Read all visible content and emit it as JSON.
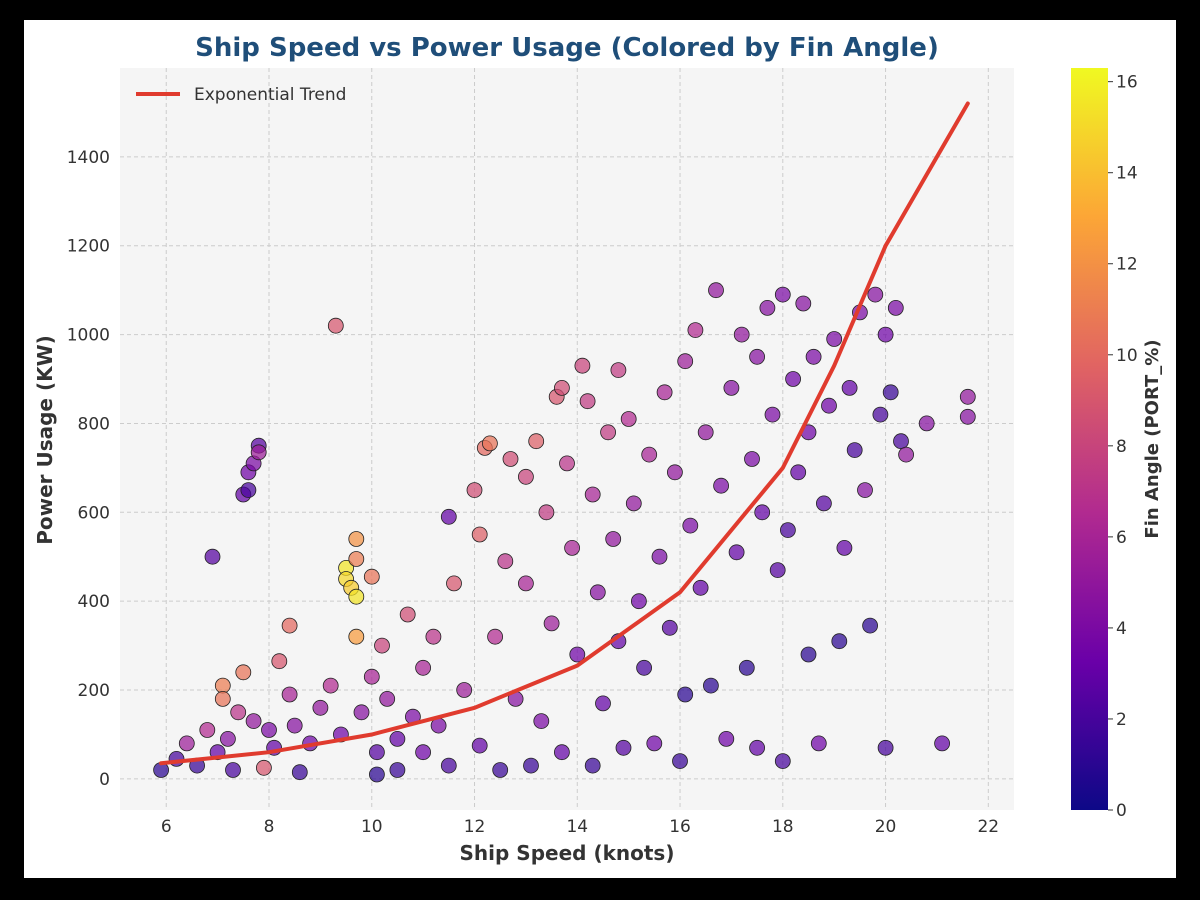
{
  "chart_data": {
    "type": "scatter",
    "title": "Ship Speed vs Power Usage (Colored by Fin Angle)",
    "xlabel": "Ship Speed (knots)",
    "ylabel": "Power Usage (KW)",
    "xlim": [
      5.1,
      22.5
    ],
    "ylim": [
      -70,
      1600
    ],
    "xticks": [
      6,
      8,
      10,
      12,
      14,
      16,
      18,
      20,
      22
    ],
    "yticks": [
      0,
      200,
      400,
      600,
      800,
      1000,
      1200,
      1400
    ],
    "grid": true,
    "legend": {
      "position": "top-left",
      "entries": [
        "Exponential Trend"
      ]
    },
    "colorbar": {
      "label": "Fin Angle (PORT_%)",
      "range": [
        0,
        16.3
      ],
      "ticks": [
        0,
        2,
        4,
        6,
        8,
        10,
        12,
        14,
        16
      ],
      "colormap": [
        "#0d0887",
        "#6a00a8",
        "#b12a90",
        "#e16462",
        "#fca636",
        "#f0f921"
      ]
    },
    "trend": {
      "name": "Exponential Trend",
      "color": "#e03b2e",
      "x": [
        5.9,
        8,
        10,
        12,
        14,
        16,
        18,
        19,
        20,
        21,
        21.6
      ],
      "y": [
        35,
        60,
        100,
        160,
        255,
        420,
        700,
        930,
        1200,
        1400,
        1520
      ]
    },
    "points": [
      [
        5.9,
        20,
        1.0
      ],
      [
        6.2,
        45,
        2.0
      ],
      [
        6.4,
        80,
        5.5
      ],
      [
        6.6,
        30,
        1.5
      ],
      [
        6.8,
        110,
        6.5
      ],
      [
        6.9,
        500,
        2.5
      ],
      [
        7.0,
        60,
        3.0
      ],
      [
        7.1,
        210,
        11.0
      ],
      [
        7.1,
        180,
        10.5
      ],
      [
        7.2,
        90,
        4.5
      ],
      [
        7.3,
        20,
        2.0
      ],
      [
        7.4,
        150,
        7.0
      ],
      [
        7.5,
        240,
        10.5
      ],
      [
        7.5,
        640,
        3.0
      ],
      [
        7.6,
        650,
        2.0
      ],
      [
        7.6,
        690,
        3.5
      ],
      [
        7.7,
        710,
        4.0
      ],
      [
        7.7,
        130,
        5.0
      ],
      [
        7.8,
        750,
        2.5
      ],
      [
        7.8,
        735,
        5.5
      ],
      [
        7.9,
        25,
        9.0
      ],
      [
        8.0,
        110,
        4.0
      ],
      [
        8.1,
        70,
        3.0
      ],
      [
        8.2,
        265,
        9.0
      ],
      [
        8.4,
        345,
        10.0
      ],
      [
        8.4,
        190,
        6.0
      ],
      [
        8.5,
        120,
        4.5
      ],
      [
        8.6,
        15,
        1.5
      ],
      [
        8.8,
        80,
        3.5
      ],
      [
        9.0,
        160,
        5.0
      ],
      [
        9.2,
        210,
        6.5
      ],
      [
        9.3,
        1020,
        9.0
      ],
      [
        9.4,
        100,
        3.5
      ],
      [
        9.5,
        475,
        15.5
      ],
      [
        9.5,
        450,
        15.0
      ],
      [
        9.6,
        430,
        14.5
      ],
      [
        9.7,
        410,
        15.5
      ],
      [
        9.7,
        320,
        12.5
      ],
      [
        9.7,
        495,
        11.0
      ],
      [
        9.7,
        540,
        12.0
      ],
      [
        9.8,
        150,
        4.5
      ],
      [
        10.0,
        455,
        10.5
      ],
      [
        10.0,
        230,
        6.0
      ],
      [
        10.1,
        60,
        2.5
      ],
      [
        10.1,
        10,
        1.0
      ],
      [
        10.2,
        300,
        8.0
      ],
      [
        10.3,
        180,
        5.0
      ],
      [
        10.5,
        90,
        3.0
      ],
      [
        10.5,
        20,
        1.5
      ],
      [
        10.7,
        370,
        8.5
      ],
      [
        10.8,
        140,
        4.0
      ],
      [
        11.0,
        250,
        6.0
      ],
      [
        11.0,
        60,
        3.5
      ],
      [
        11.2,
        320,
        7.0
      ],
      [
        11.3,
        120,
        4.0
      ],
      [
        11.5,
        30,
        2.0
      ],
      [
        11.5,
        590,
        3.0
      ],
      [
        11.6,
        440,
        9.0
      ],
      [
        11.8,
        200,
        5.5
      ],
      [
        12.0,
        650,
        8.5
      ],
      [
        12.1,
        550,
        9.5
      ],
      [
        12.1,
        75,
        3.0
      ],
      [
        12.2,
        745,
        10.0
      ],
      [
        12.3,
        755,
        10.5
      ],
      [
        12.4,
        320,
        6.5
      ],
      [
        12.5,
        20,
        1.5
      ],
      [
        12.6,
        490,
        7.0
      ],
      [
        12.7,
        720,
        8.5
      ],
      [
        12.8,
        180,
        4.5
      ],
      [
        13.0,
        680,
        8.0
      ],
      [
        13.0,
        440,
        6.0
      ],
      [
        13.1,
        30,
        1.5
      ],
      [
        13.2,
        760,
        9.5
      ],
      [
        13.3,
        130,
        4.0
      ],
      [
        13.4,
        600,
        7.5
      ],
      [
        13.5,
        350,
        5.5
      ],
      [
        13.6,
        860,
        9.0
      ],
      [
        13.7,
        880,
        8.5
      ],
      [
        13.7,
        60,
        3.0
      ],
      [
        13.8,
        710,
        7.0
      ],
      [
        13.9,
        520,
        6.0
      ],
      [
        14.0,
        280,
        3.5
      ],
      [
        14.1,
        930,
        8.0
      ],
      [
        14.2,
        850,
        7.5
      ],
      [
        14.3,
        640,
        6.0
      ],
      [
        14.3,
        30,
        1.5
      ],
      [
        14.4,
        420,
        4.5
      ],
      [
        14.5,
        170,
        3.0
      ],
      [
        14.6,
        780,
        7.5
      ],
      [
        14.7,
        540,
        5.0
      ],
      [
        14.8,
        310,
        3.0
      ],
      [
        14.8,
        920,
        7.5
      ],
      [
        14.9,
        70,
        2.5
      ],
      [
        15.0,
        810,
        6.5
      ],
      [
        15.1,
        620,
        5.0
      ],
      [
        15.2,
        400,
        3.5
      ],
      [
        15.3,
        250,
        2.0
      ],
      [
        15.4,
        730,
        6.0
      ],
      [
        15.5,
        80,
        3.5
      ],
      [
        15.6,
        500,
        4.0
      ],
      [
        15.7,
        870,
        6.0
      ],
      [
        15.8,
        340,
        2.5
      ],
      [
        15.9,
        690,
        5.0
      ],
      [
        16.0,
        40,
        1.5
      ],
      [
        16.1,
        940,
        5.5
      ],
      [
        16.1,
        190,
        1.0
      ],
      [
        16.2,
        570,
        4.0
      ],
      [
        16.3,
        1010,
        6.5
      ],
      [
        16.4,
        430,
        3.0
      ],
      [
        16.5,
        780,
        5.0
      ],
      [
        16.6,
        210,
        1.0
      ],
      [
        16.7,
        1100,
        5.0
      ],
      [
        16.8,
        660,
        4.0
      ],
      [
        16.9,
        90,
        3.5
      ],
      [
        17.0,
        880,
        4.5
      ],
      [
        17.1,
        510,
        3.0
      ],
      [
        17.2,
        1000,
        5.0
      ],
      [
        17.3,
        250,
        1.0
      ],
      [
        17.4,
        720,
        4.0
      ],
      [
        17.5,
        950,
        4.5
      ],
      [
        17.5,
        70,
        3.0
      ],
      [
        17.6,
        600,
        3.0
      ],
      [
        17.7,
        1060,
        4.5
      ],
      [
        17.8,
        820,
        4.0
      ],
      [
        17.9,
        470,
        2.5
      ],
      [
        18.0,
        1090,
        4.0
      ],
      [
        18.0,
        40,
        2.0
      ],
      [
        18.1,
        560,
        2.0
      ],
      [
        18.2,
        900,
        3.5
      ],
      [
        18.3,
        690,
        3.0
      ],
      [
        18.4,
        1070,
        4.5
      ],
      [
        18.5,
        780,
        3.5
      ],
      [
        18.5,
        280,
        1.0
      ],
      [
        18.6,
        950,
        4.0
      ],
      [
        18.7,
        80,
        3.5
      ],
      [
        18.8,
        620,
        2.5
      ],
      [
        18.9,
        840,
        3.5
      ],
      [
        19.0,
        990,
        4.0
      ],
      [
        19.1,
        310,
        1.0
      ],
      [
        19.2,
        520,
        3.0
      ],
      [
        19.3,
        880,
        3.0
      ],
      [
        19.4,
        740,
        2.0
      ],
      [
        19.5,
        1050,
        4.0
      ],
      [
        19.6,
        650,
        4.5
      ],
      [
        19.7,
        345,
        1.0
      ],
      [
        19.8,
        1090,
        4.5
      ],
      [
        19.9,
        820,
        2.0
      ],
      [
        20.0,
        1000,
        3.5
      ],
      [
        20.0,
        70,
        2.0
      ],
      [
        20.1,
        870,
        1.5
      ],
      [
        20.2,
        1060,
        4.0
      ],
      [
        20.3,
        760,
        2.0
      ],
      [
        20.4,
        730,
        5.0
      ],
      [
        20.8,
        800,
        4.5
      ],
      [
        21.1,
        80,
        3.0
      ],
      [
        21.6,
        860,
        5.0
      ],
      [
        21.6,
        815,
        4.5
      ]
    ]
  }
}
